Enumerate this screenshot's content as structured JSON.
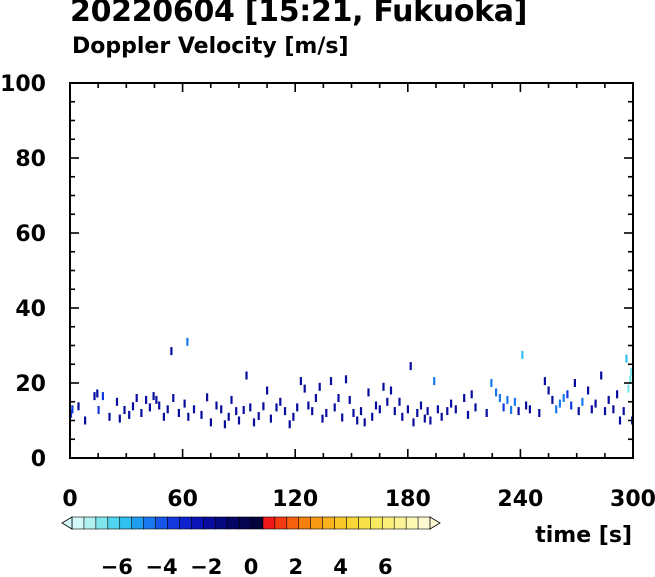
{
  "header": {
    "title": "20220604 [15:21, Fukuoka]",
    "subtitle": "Doppler Velocity [m/s]"
  },
  "chart_data": {
    "type": "scatter",
    "title": "20220604 [15:21, Fukuoka]",
    "subtitle": "Doppler Velocity [m/s]",
    "xlabel": "time [s]",
    "ylabel": "",
    "xlim": [
      0,
      300
    ],
    "ylim": [
      0,
      100
    ],
    "xticks": [
      0,
      60,
      120,
      180,
      240,
      300
    ],
    "yticks": [
      0,
      20,
      40,
      60,
      80,
      100
    ],
    "grid": false,
    "colorbar": {
      "labels": [
        "-6",
        "-4",
        "-2",
        "0",
        "2",
        "4",
        "6"
      ],
      "label_values": [
        -6,
        -4,
        -2,
        0,
        2,
        4,
        6
      ],
      "range": [
        -8,
        8
      ],
      "colors": [
        "#d4f8f8",
        "#b0f0f0",
        "#80e6ee",
        "#50d6f0",
        "#2ec0f0",
        "#1e9cf0",
        "#1a78ee",
        "#1655e8",
        "#1238de",
        "#0c22cc",
        "#0a14b8",
        "#080c9e",
        "#060880",
        "#050566",
        "#040450",
        "#03033c",
        "#f01818",
        "#f43c10",
        "#f6600c",
        "#f6800c",
        "#f89a14",
        "#f8b21e",
        "#f8c628",
        "#f8d636",
        "#f8e24a",
        "#f8ea60",
        "#faf07a",
        "#faf496",
        "#fcf8b4",
        "#fdfad2"
      ]
    },
    "points": [
      [
        0.5,
        11.8,
        -3.4
      ],
      [
        1.2,
        13.0,
        -3.4
      ],
      [
        4.5,
        13.8,
        -2.0
      ],
      [
        8.0,
        10.0,
        -2.0
      ],
      [
        13.0,
        16.5,
        -2.0
      ],
      [
        14.5,
        17.2,
        -2.0
      ],
      [
        15.2,
        12.8,
        -3.4
      ],
      [
        17.5,
        16.5,
        -3.4
      ],
      [
        21.0,
        11.0,
        -2.0
      ],
      [
        25.0,
        15.0,
        -2.0
      ],
      [
        26.5,
        10.5,
        -2.0
      ],
      [
        29.0,
        12.8,
        -2.0
      ],
      [
        31.5,
        11.5,
        -2.0
      ],
      [
        33.5,
        13.8,
        -2.0
      ],
      [
        35.5,
        16.0,
        -2.0
      ],
      [
        38.0,
        12.0,
        -2.0
      ],
      [
        40.5,
        15.5,
        -2.0
      ],
      [
        42.5,
        13.5,
        -2.0
      ],
      [
        44.5,
        16.5,
        -2.0
      ],
      [
        46.0,
        15.5,
        -2.0
      ],
      [
        47.5,
        14.0,
        -2.0
      ],
      [
        50.0,
        11.0,
        -2.0
      ],
      [
        52.0,
        13.0,
        -2.0
      ],
      [
        54.0,
        28.5,
        -2.0
      ],
      [
        55.0,
        16.0,
        -2.0
      ],
      [
        58.0,
        12.0,
        -2.0
      ],
      [
        61.0,
        14.5,
        -2.0
      ],
      [
        62.5,
        31.0,
        -4.6
      ],
      [
        63.0,
        11.0,
        -2.0
      ],
      [
        66.0,
        13.0,
        -2.0
      ],
      [
        70.0,
        11.5,
        -2.0
      ],
      [
        73.0,
        16.2,
        -2.0
      ],
      [
        75.0,
        9.5,
        -2.0
      ],
      [
        78.0,
        14.0,
        -2.0
      ],
      [
        80.5,
        13.0,
        -2.0
      ],
      [
        82.5,
        9.0,
        -2.0
      ],
      [
        84.5,
        11.0,
        -2.0
      ],
      [
        86.0,
        15.5,
        -2.0
      ],
      [
        88.5,
        12.5,
        -2.0
      ],
      [
        90.0,
        10.0,
        -2.0
      ],
      [
        92.5,
        12.8,
        -2.0
      ],
      [
        94.0,
        22.0,
        -2.0
      ],
      [
        96.0,
        13.5,
        -2.0
      ],
      [
        98.0,
        9.5,
        -2.0
      ],
      [
        100.5,
        11.2,
        -2.0
      ],
      [
        103.0,
        13.8,
        -2.0
      ],
      [
        105.0,
        18.0,
        -2.0
      ],
      [
        107.0,
        10.5,
        -2.0
      ],
      [
        110.0,
        13.5,
        -2.0
      ],
      [
        112.0,
        15.0,
        -2.0
      ],
      [
        114.5,
        12.5,
        -2.0
      ],
      [
        117.0,
        9.0,
        -2.0
      ],
      [
        119.0,
        11.0,
        -2.0
      ],
      [
        121.0,
        13.5,
        -2.0
      ],
      [
        123.0,
        20.5,
        -2.0
      ],
      [
        125.0,
        18.5,
        -2.0
      ],
      [
        127.0,
        14.0,
        -2.0
      ],
      [
        129.0,
        12.5,
        -2.0
      ],
      [
        131.0,
        16.0,
        -2.0
      ],
      [
        133.0,
        19.0,
        -2.0
      ],
      [
        134.5,
        10.5,
        -2.0
      ],
      [
        136.5,
        12.0,
        -2.0
      ],
      [
        139.0,
        20.5,
        -2.0
      ],
      [
        141.0,
        13.5,
        -2.0
      ],
      [
        143.0,
        16.0,
        -2.0
      ],
      [
        145.0,
        10.8,
        -2.0
      ],
      [
        147.0,
        21.0,
        -2.0
      ],
      [
        149.0,
        15.5,
        -2.0
      ],
      [
        151.0,
        12.0,
        -2.0
      ],
      [
        153.0,
        10.0,
        -2.0
      ],
      [
        155.0,
        12.5,
        -2.0
      ],
      [
        157.0,
        9.5,
        -2.0
      ],
      [
        159.0,
        17.5,
        -2.0
      ],
      [
        161.0,
        11.0,
        -2.0
      ],
      [
        163.0,
        14.0,
        -2.0
      ],
      [
        165.0,
        13.0,
        -2.0
      ],
      [
        167.0,
        19.0,
        -2.0
      ],
      [
        169.0,
        15.0,
        -2.0
      ],
      [
        171.0,
        18.0,
        -2.0
      ],
      [
        173.0,
        12.5,
        -2.0
      ],
      [
        175.5,
        15.0,
        -2.0
      ],
      [
        177.0,
        11.0,
        -2.0
      ],
      [
        180.0,
        13.0,
        -2.0
      ],
      [
        181.5,
        24.5,
        -2.0
      ],
      [
        183.0,
        9.5,
        -2.0
      ],
      [
        185.0,
        12.0,
        -2.0
      ],
      [
        187.0,
        14.0,
        -2.0
      ],
      [
        189.0,
        10.5,
        -2.0
      ],
      [
        190.5,
        12.5,
        -2.0
      ],
      [
        192.0,
        10.0,
        -2.0
      ],
      [
        194.0,
        20.5,
        -4.6
      ],
      [
        196.0,
        13.0,
        -2.0
      ],
      [
        198.0,
        11.0,
        -2.0
      ],
      [
        201.0,
        12.5,
        -2.0
      ],
      [
        203.0,
        14.5,
        -2.0
      ],
      [
        205.5,
        13.0,
        -2.0
      ],
      [
        210.0,
        16.0,
        -2.0
      ],
      [
        212.0,
        11.5,
        -2.0
      ],
      [
        214.0,
        17.0,
        -2.0
      ],
      [
        216.0,
        13.5,
        -2.0
      ],
      [
        222.0,
        12.0,
        -2.0
      ],
      [
        224.5,
        20.0,
        -4.6
      ],
      [
        227.0,
        17.5,
        -4.6
      ],
      [
        229.0,
        16.0,
        -4.6
      ],
      [
        231.0,
        13.5,
        -3.4
      ],
      [
        233.0,
        15.5,
        -4.6
      ],
      [
        235.0,
        12.8,
        -4.6
      ],
      [
        237.0,
        15.0,
        -4.6
      ],
      [
        239.0,
        12.5,
        -2.0
      ],
      [
        241.0,
        27.5,
        -5.8
      ],
      [
        243.0,
        14.0,
        -2.0
      ],
      [
        245.0,
        13.0,
        -2.0
      ],
      [
        250.0,
        12.0,
        -2.0
      ],
      [
        253.0,
        20.5,
        -2.0
      ],
      [
        255.0,
        18.0,
        -2.0
      ],
      [
        257.0,
        15.5,
        -2.0
      ],
      [
        259.0,
        13.0,
        -4.6
      ],
      [
        261.0,
        14.5,
        -4.6
      ],
      [
        263.0,
        16.0,
        -4.6
      ],
      [
        265.0,
        17.0,
        -3.4
      ],
      [
        267.0,
        14.0,
        -3.4
      ],
      [
        269.0,
        20.0,
        -2.0
      ],
      [
        271.0,
        12.5,
        -2.0
      ],
      [
        273.0,
        15.0,
        -4.6
      ],
      [
        276.0,
        18.0,
        -2.0
      ],
      [
        278.0,
        13.0,
        -2.0
      ],
      [
        280.0,
        14.5,
        -2.0
      ],
      [
        283.0,
        22.0,
        -2.0
      ],
      [
        285.0,
        12.5,
        -2.0
      ],
      [
        287.0,
        15.5,
        -2.0
      ],
      [
        289.5,
        13.0,
        -2.0
      ],
      [
        291.5,
        17.0,
        -2.0
      ],
      [
        293.0,
        10.0,
        -2.0
      ],
      [
        295.0,
        12.5,
        -2.0
      ],
      [
        296.5,
        26.5,
        -5.8
      ],
      [
        297.5,
        18.5,
        -6.8
      ],
      [
        298.5,
        21.0,
        -6.8
      ],
      [
        299.0,
        23.0,
        -6.8
      ],
      [
        299.5,
        10.0,
        -2.0
      ]
    ]
  }
}
